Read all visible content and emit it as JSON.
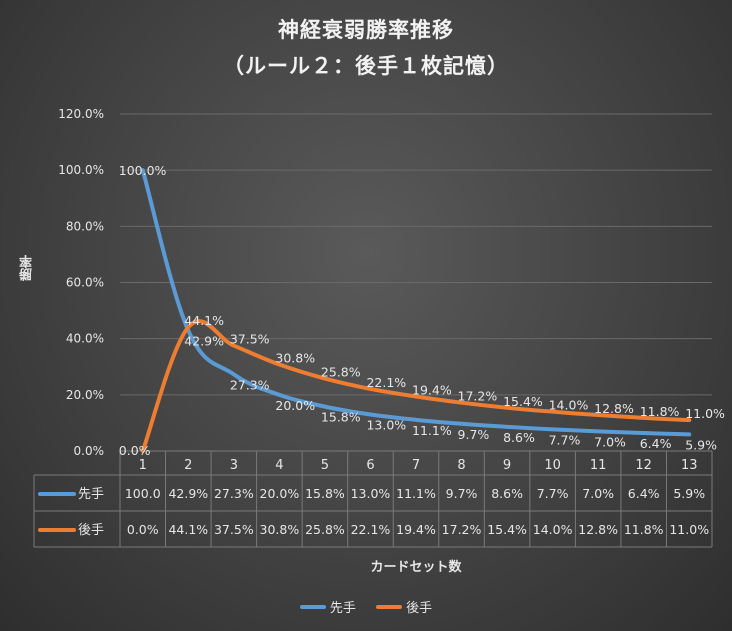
{
  "chart_data": {
    "type": "line",
    "title": "神経衰弱勝率推移",
    "subtitle": "（ルール２：後手１枚記憶）",
    "xlabel": "カードセット数",
    "ylabel": "勝率",
    "categories": [
      "1",
      "2",
      "3",
      "4",
      "5",
      "6",
      "7",
      "8",
      "9",
      "10",
      "11",
      "12",
      "13"
    ],
    "ylim": [
      0,
      120
    ],
    "yticks": [
      "0.0%",
      "20.0%",
      "40.0%",
      "60.0%",
      "80.0%",
      "100.0%",
      "120.0%"
    ],
    "ytick_values": [
      0,
      20,
      40,
      60,
      80,
      100,
      120
    ],
    "grid": true,
    "legend_position": "bottom",
    "data_table": true,
    "series": [
      {
        "name": "先手",
        "color": "#5b9bd5",
        "values": [
          100.0,
          42.9,
          27.3,
          20.0,
          15.8,
          13.0,
          11.1,
          9.7,
          8.6,
          7.7,
          7.0,
          6.4,
          5.9
        ],
        "labels": [
          "100.0%",
          "42.9%",
          "27.3%",
          "20.0%",
          "15.8%",
          "13.0%",
          "11.1%",
          "9.7%",
          "8.6%",
          "7.7%",
          "7.0%",
          "6.4%",
          "5.9%"
        ],
        "table_values": [
          "100.0",
          "42.9%",
          "27.3%",
          "20.0%",
          "15.8%",
          "13.0%",
          "11.1%",
          "9.7%",
          "8.6%",
          "7.7%",
          "7.0%",
          "6.4%",
          "5.9%"
        ]
      },
      {
        "name": "後手",
        "color": "#ed7d31",
        "values": [
          0.0,
          44.1,
          37.5,
          30.8,
          25.8,
          22.1,
          19.4,
          17.2,
          15.4,
          14.0,
          12.8,
          11.8,
          11.0
        ],
        "labels": [
          "0.0%",
          "44.1%",
          "37.5%",
          "30.8%",
          "25.8%",
          "22.1%",
          "19.4%",
          "17.2%",
          "15.4%",
          "14.0%",
          "12.8%",
          "11.8%",
          "11.0%"
        ],
        "table_values": [
          "0.0%",
          "44.1%",
          "37.5%",
          "30.8%",
          "25.8%",
          "22.1%",
          "19.4%",
          "17.2%",
          "15.4%",
          "14.0%",
          "12.8%",
          "11.8%",
          "11.0%"
        ]
      }
    ]
  }
}
